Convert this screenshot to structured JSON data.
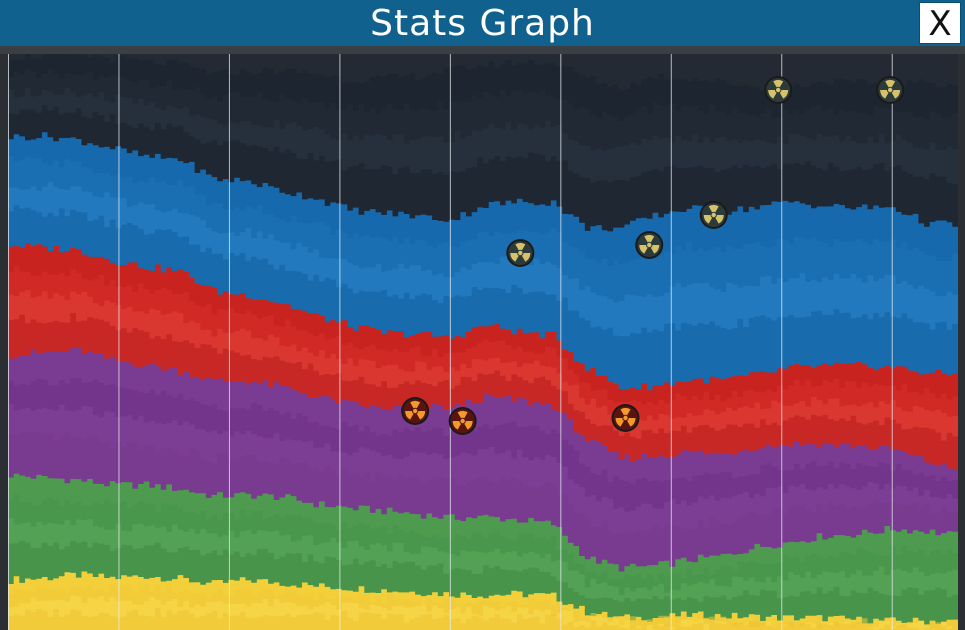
{
  "window": {
    "title": "Stats Graph",
    "close_label": "X"
  },
  "colors": {
    "title_bar": "#11618f",
    "background_top": "#232a33",
    "gridline": "#e8eef2"
  },
  "chart_data": {
    "type": "area",
    "stacked": true,
    "gridlines": "vertical",
    "grid_count": 9,
    "x_points": 29,
    "series": [
      {
        "color": "#f3cf3a",
        "shade_colors": [
          "#f5d744",
          "#f0c938",
          "#f7dd52",
          "#eec332"
        ],
        "values": [
          50,
          52,
          55,
          52,
          54,
          51,
          46,
          50,
          47,
          44,
          42,
          40,
          38,
          36,
          35,
          36,
          34,
          18,
          12,
          12,
          15,
          14,
          13,
          12,
          12,
          10,
          9,
          9,
          8
        ]
      },
      {
        "color": "#4e9b50",
        "shade_colors": [
          "#4f9d52",
          "#469448",
          "#5aa95c",
          "#3f8b42"
        ],
        "values": [
          105,
          100,
          95,
          93,
          91,
          90,
          88,
          85,
          86,
          82,
          80,
          79,
          78,
          76,
          78,
          74,
          72,
          54,
          50,
          52,
          55,
          60,
          70,
          76,
          82,
          86,
          92,
          90,
          86
        ]
      },
      {
        "color": "#7a3b92",
        "shade_colors": [
          "#7a3b92",
          "#6e3285",
          "#84449c",
          "#743a8c"
        ],
        "values": [
          120,
          125,
          130,
          125,
          120,
          118,
          115,
          114,
          110,
          108,
          104,
          102,
          108,
          110,
          120,
          120,
          118,
          118,
          110,
          110,
          108,
          102,
          100,
          98,
          92,
          88,
          80,
          70,
          65
        ]
      },
      {
        "color": "#c8231f",
        "shade_colors": [
          "#c8231f",
          "#d9322b",
          "#e2423a",
          "#b81e1c"
        ],
        "values": [
          110,
          105,
          100,
          100,
          98,
          100,
          90,
          86,
          84,
          80,
          78,
          76,
          72,
          70,
          72,
          68,
          70,
          72,
          70,
          70,
          72,
          74,
          72,
          76,
          78,
          80,
          82,
          88,
          96
        ]
      },
      {
        "color": "#1769ad",
        "shade_colors": [
          "#1769ad",
          "#1e74b8",
          "#2a82c5",
          "#1160a0"
        ],
        "values": [
          108,
          112,
          110,
          112,
          110,
          112,
          112,
          114,
          112,
          118,
          116,
          120,
          118,
          118,
          120,
          130,
          134,
          140,
          160,
          170,
          172,
          168,
          168,
          166,
          160,
          158,
          160,
          150,
          150
        ]
      },
      {
        "color": "#1d2530",
        "shade_colors": [
          "#1d2530",
          "#242d39",
          "#2b3543",
          "#1a212b"
        ],
        "values": [
          80,
          80,
          85,
          90,
          95,
          95,
          105,
          110,
          120,
          125,
          130,
          135,
          140,
          150,
          140,
          140,
          140,
          150,
          140,
          140,
          130,
          130,
          120,
          115,
          125,
          125,
          125,
          140,
          140
        ]
      }
    ],
    "markers": [
      {
        "type": "nuclear",
        "style": "gold",
        "col": 22.7,
        "level": 540
      },
      {
        "type": "nuclear",
        "style": "gold",
        "col": 26.0,
        "level": 540
      },
      {
        "type": "nuclear",
        "style": "gold",
        "col": 20.8,
        "level": 415
      },
      {
        "type": "nuclear",
        "style": "gold",
        "col": 18.9,
        "level": 385
      },
      {
        "type": "nuclear",
        "style": "gold",
        "col": 15.1,
        "level": 377
      },
      {
        "type": "nuclear",
        "style": "orange",
        "col": 12.0,
        "level": 219
      },
      {
        "type": "nuclear",
        "style": "orange",
        "col": 13.4,
        "level": 209
      },
      {
        "type": "nuclear",
        "style": "orange",
        "col": 18.2,
        "level": 212
      }
    ]
  }
}
